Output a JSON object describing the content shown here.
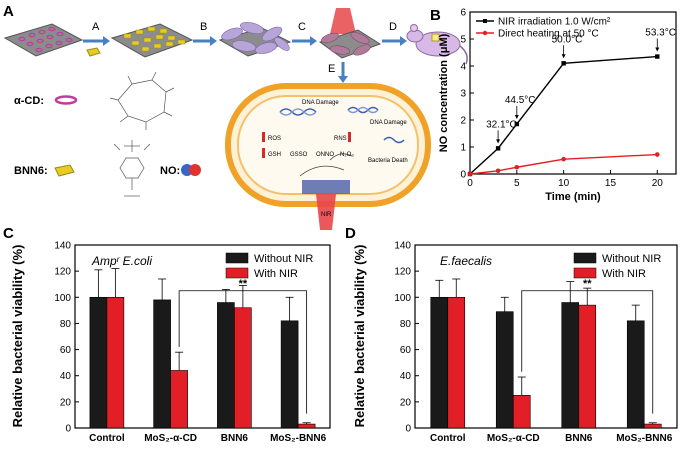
{
  "panels": {
    "A": "A",
    "B": "B",
    "C": "C",
    "D": "D"
  },
  "schematic": {
    "steps": [
      "A",
      "B",
      "C",
      "D",
      "E"
    ],
    "legend": {
      "acd": "α-CD:",
      "bnn6": "BNN6:",
      "no": "NO:"
    },
    "cell": {
      "dna_damage": "DNA Damage",
      "ros": "ROS",
      "rns": "RNS",
      "gsh": "GSH",
      "gsso": "GSSO",
      "onno": "ONNO",
      "n2o3": "N₂O₃",
      "bacteria_death": "Bacteria Death",
      "nir": "NIR"
    }
  },
  "chart_data": [
    {
      "id": "B",
      "type": "line",
      "title": "",
      "xlabel": "Time (min)",
      "ylabel": "NO concentration (μM)",
      "xlim": [
        0,
        22
      ],
      "ylim": [
        0,
        6
      ],
      "xticks": [
        "0",
        "5",
        "10",
        "15",
        "20"
      ],
      "yticks": [
        "0",
        "1",
        "2",
        "3",
        "4",
        "5",
        "6"
      ],
      "legend_position": "top-left",
      "series": [
        {
          "name": "NIR irradiation 1.0 W/cm²",
          "color": "#000000",
          "x": [
            0,
            3,
            5,
            10,
            20
          ],
          "y": [
            0,
            0.95,
            1.85,
            4.1,
            4.35
          ]
        },
        {
          "name": "Direct heating at 50 °C",
          "color": "#e21f26",
          "x": [
            0,
            3,
            5,
            10,
            20
          ],
          "y": [
            0,
            0.12,
            0.25,
            0.55,
            0.72
          ]
        }
      ],
      "annotations": [
        {
          "text": "32.1°C",
          "x": 3,
          "y": 0.95
        },
        {
          "text": "44.5°C",
          "x": 5,
          "y": 1.85
        },
        {
          "text": "50.0°C",
          "x": 10,
          "y": 4.1
        },
        {
          "text": "53.3°C",
          "x": 20,
          "y": 4.35
        }
      ]
    },
    {
      "id": "C",
      "type": "bar",
      "title": "Ampʳ E.coli",
      "xlabel": "",
      "ylabel": "Relative bacterial viability (%)",
      "ylim": [
        0,
        140
      ],
      "yticks": [
        "0",
        "20",
        "40",
        "60",
        "80",
        "100",
        "120",
        "140"
      ],
      "categories": [
        "Control",
        "MoS₂-α-CD",
        "BNN6",
        "MoS₂-BNN6"
      ],
      "legend_position": "top-right",
      "significance": "**",
      "series": [
        {
          "name": "Without NIR",
          "color": "#1a1a1a",
          "values": [
            100,
            98,
            96,
            82
          ],
          "errors": [
            21,
            16,
            10,
            18
          ]
        },
        {
          "name": "With NIR",
          "color": "#e21f26",
          "values": [
            100,
            44,
            92,
            3
          ],
          "errors": [
            22,
            14,
            17,
            1
          ]
        }
      ]
    },
    {
      "id": "D",
      "type": "bar",
      "title": "E.faecalis",
      "xlabel": "",
      "ylabel": "Relative bacterial viability (%)",
      "ylim": [
        0,
        140
      ],
      "yticks": [
        "0",
        "20",
        "40",
        "60",
        "80",
        "100",
        "120",
        "140"
      ],
      "categories": [
        "Control",
        "MoS₂-α-CD",
        "BNN6",
        "MoS₂-BNN6"
      ],
      "legend_position": "top-right",
      "significance": "**",
      "series": [
        {
          "name": "Without NIR",
          "color": "#1a1a1a",
          "values": [
            100,
            89,
            96,
            82
          ],
          "errors": [
            13,
            11,
            16,
            12
          ]
        },
        {
          "name": "With NIR",
          "color": "#e21f26",
          "values": [
            100,
            25,
            94,
            3
          ],
          "errors": [
            14,
            14,
            13,
            1
          ]
        }
      ]
    }
  ]
}
